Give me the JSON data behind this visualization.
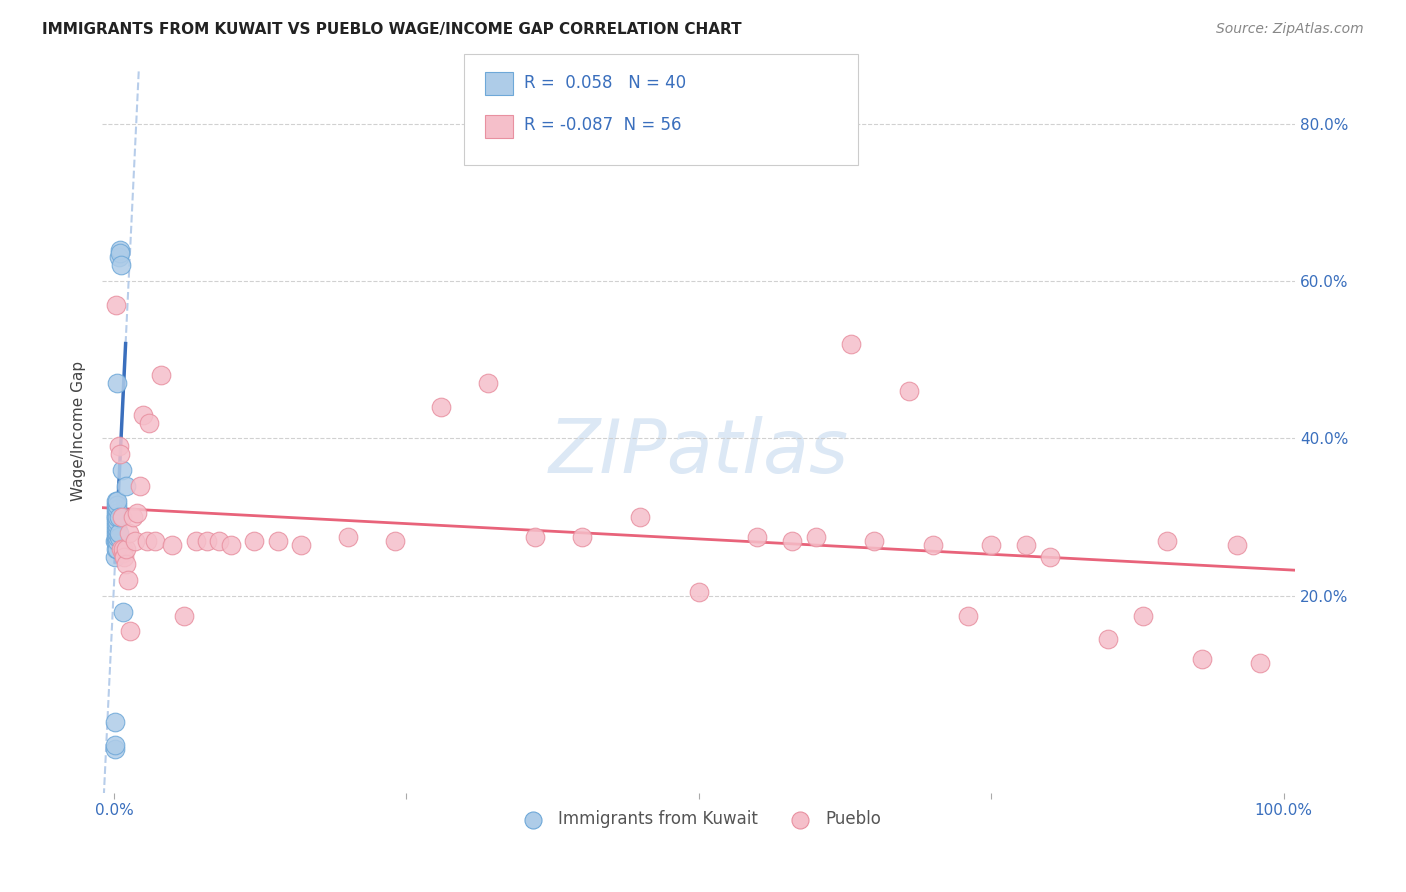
{
  "title": "IMMIGRANTS FROM KUWAIT VS PUEBLO WAGE/INCOME GAP CORRELATION CHART",
  "source": "Source: ZipAtlas.com",
  "ylabel": "Wage/Income Gap",
  "x_min": -0.01,
  "x_max": 1.01,
  "y_min": -0.05,
  "y_max": 0.87,
  "x_ticks": [
    0.0,
    0.25,
    0.5,
    0.75,
    1.0
  ],
  "x_tick_labels": [
    "0.0%",
    "",
    "",
    "",
    "100.0%"
  ],
  "y_ticks": [
    0.2,
    0.4,
    0.6,
    0.8
  ],
  "y_tick_labels": [
    "20.0%",
    "40.0%",
    "60.0%",
    "80.0%"
  ],
  "r_blue": 0.058,
  "n_blue": 40,
  "r_pink": -0.087,
  "n_pink": 56,
  "blue_color": "#aecce8",
  "pink_color": "#f5bfca",
  "blue_line_solid_color": "#3a6fbd",
  "blue_line_dash_color": "#b0c8e8",
  "pink_line_color": "#e8637a",
  "blue_edge_color": "#6ea8d8",
  "pink_edge_color": "#e890a0",
  "legend_r_color": "#3a6fbd",
  "watermark_color": "#dce8f5",
  "blue_x": [
    0.001,
    0.001,
    0.001,
    0.001,
    0.001,
    0.002,
    0.002,
    0.002,
    0.002,
    0.002,
    0.002,
    0.002,
    0.002,
    0.002,
    0.002,
    0.002,
    0.002,
    0.002,
    0.003,
    0.003,
    0.003,
    0.003,
    0.003,
    0.003,
    0.003,
    0.003,
    0.003,
    0.003,
    0.003,
    0.003,
    0.004,
    0.004,
    0.004,
    0.004,
    0.005,
    0.005,
    0.006,
    0.007,
    0.008,
    0.01
  ],
  "blue_y": [
    0.005,
    0.01,
    0.04,
    0.25,
    0.27,
    0.26,
    0.27,
    0.275,
    0.28,
    0.285,
    0.29,
    0.295,
    0.3,
    0.305,
    0.31,
    0.315,
    0.32,
    0.3,
    0.26,
    0.27,
    0.275,
    0.28,
    0.285,
    0.29,
    0.295,
    0.3,
    0.31,
    0.315,
    0.32,
    0.47,
    0.275,
    0.28,
    0.3,
    0.63,
    0.64,
    0.635,
    0.62,
    0.36,
    0.18,
    0.34
  ],
  "pink_x": [
    0.002,
    0.004,
    0.005,
    0.006,
    0.007,
    0.008,
    0.008,
    0.009,
    0.01,
    0.01,
    0.012,
    0.013,
    0.014,
    0.016,
    0.018,
    0.02,
    0.022,
    0.025,
    0.028,
    0.03,
    0.035,
    0.04,
    0.05,
    0.06,
    0.07,
    0.08,
    0.09,
    0.1,
    0.12,
    0.14,
    0.16,
    0.2,
    0.24,
    0.28,
    0.32,
    0.36,
    0.4,
    0.45,
    0.5,
    0.55,
    0.58,
    0.6,
    0.63,
    0.65,
    0.68,
    0.7,
    0.73,
    0.75,
    0.78,
    0.8,
    0.85,
    0.88,
    0.9,
    0.93,
    0.96,
    0.98
  ],
  "pink_y": [
    0.57,
    0.39,
    0.38,
    0.26,
    0.3,
    0.255,
    0.26,
    0.25,
    0.24,
    0.26,
    0.22,
    0.28,
    0.155,
    0.3,
    0.27,
    0.305,
    0.34,
    0.43,
    0.27,
    0.42,
    0.27,
    0.48,
    0.265,
    0.175,
    0.27,
    0.27,
    0.27,
    0.265,
    0.27,
    0.27,
    0.265,
    0.275,
    0.27,
    0.44,
    0.47,
    0.275,
    0.275,
    0.3,
    0.205,
    0.275,
    0.27,
    0.275,
    0.52,
    0.27,
    0.46,
    0.265,
    0.175,
    0.265,
    0.265,
    0.25,
    0.145,
    0.175,
    0.27,
    0.12,
    0.265,
    0.115
  ]
}
